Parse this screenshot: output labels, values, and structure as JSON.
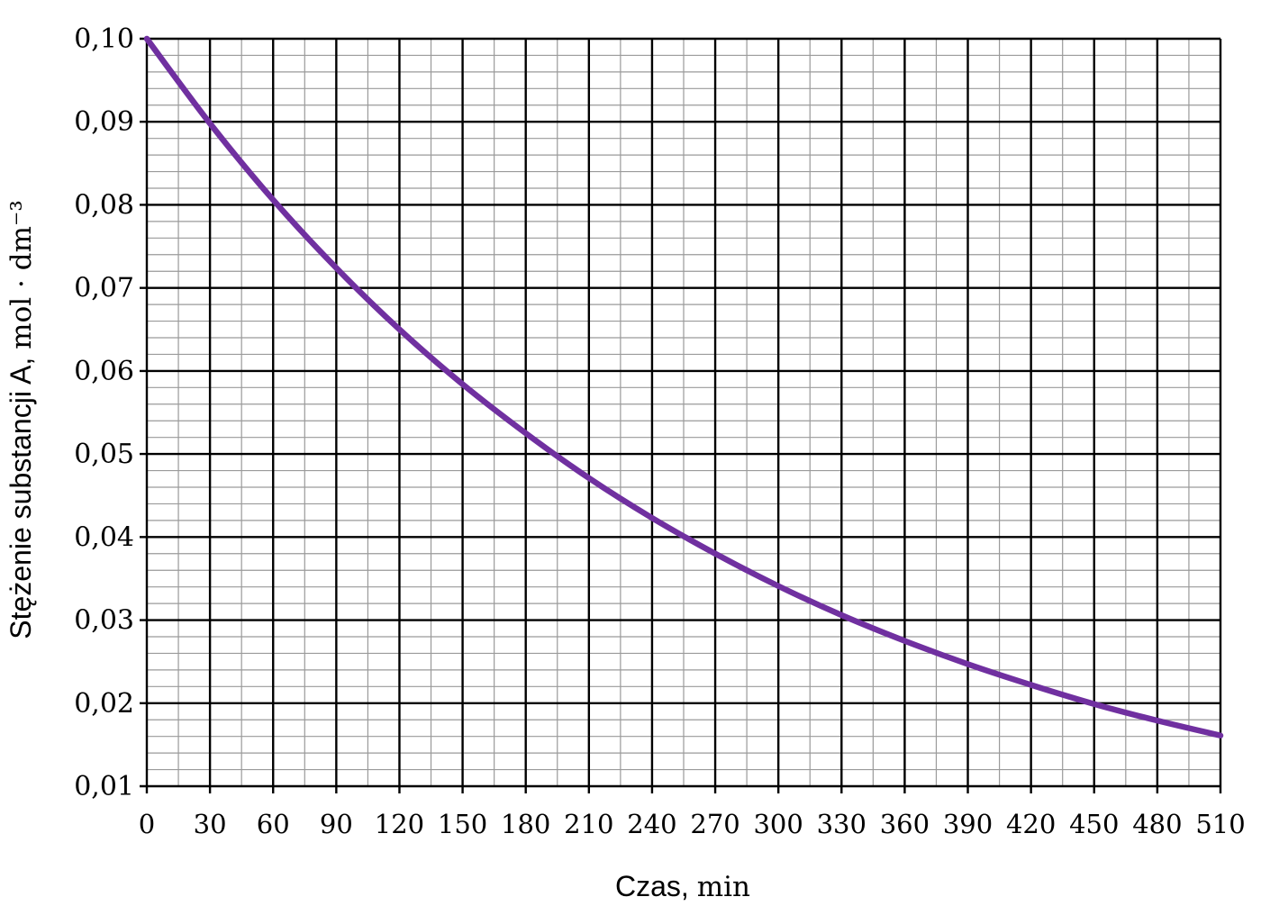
{
  "chart_data": {
    "type": "line",
    "title": "",
    "xlabel": "Czas",
    "xunit": "min",
    "ylabel": "Stężenie substancji A",
    "yunit": "mol · dm⁻³",
    "xlim": [
      0,
      510
    ],
    "ylim": [
      0.01,
      0.1
    ],
    "xticks": [
      "0",
      "30",
      "60",
      "90",
      "120",
      "150",
      "180",
      "210",
      "240",
      "270",
      "300",
      "330",
      "360",
      "390",
      "420",
      "450",
      "480",
      "510"
    ],
    "yticks": [
      "0,01",
      "0,02",
      "0,03",
      "0,04",
      "0,05",
      "0,06",
      "0,07",
      "0,08",
      "0,09",
      "0,10"
    ],
    "grid": true,
    "line_color": "#7030A0",
    "series": [
      {
        "x": [
          0,
          30,
          60,
          90,
          120,
          150,
          180,
          210,
          240,
          270,
          300,
          330,
          360,
          390,
          420,
          450,
          480,
          510
        ],
        "values": [
          0.1,
          0.0898,
          0.0806,
          0.0724,
          0.065,
          0.0584,
          0.0525,
          0.0471,
          0.0423,
          0.038,
          0.0341,
          0.0306,
          0.0275,
          0.0247,
          0.0222,
          0.0199,
          0.0179,
          0.0161
        ]
      }
    ]
  }
}
